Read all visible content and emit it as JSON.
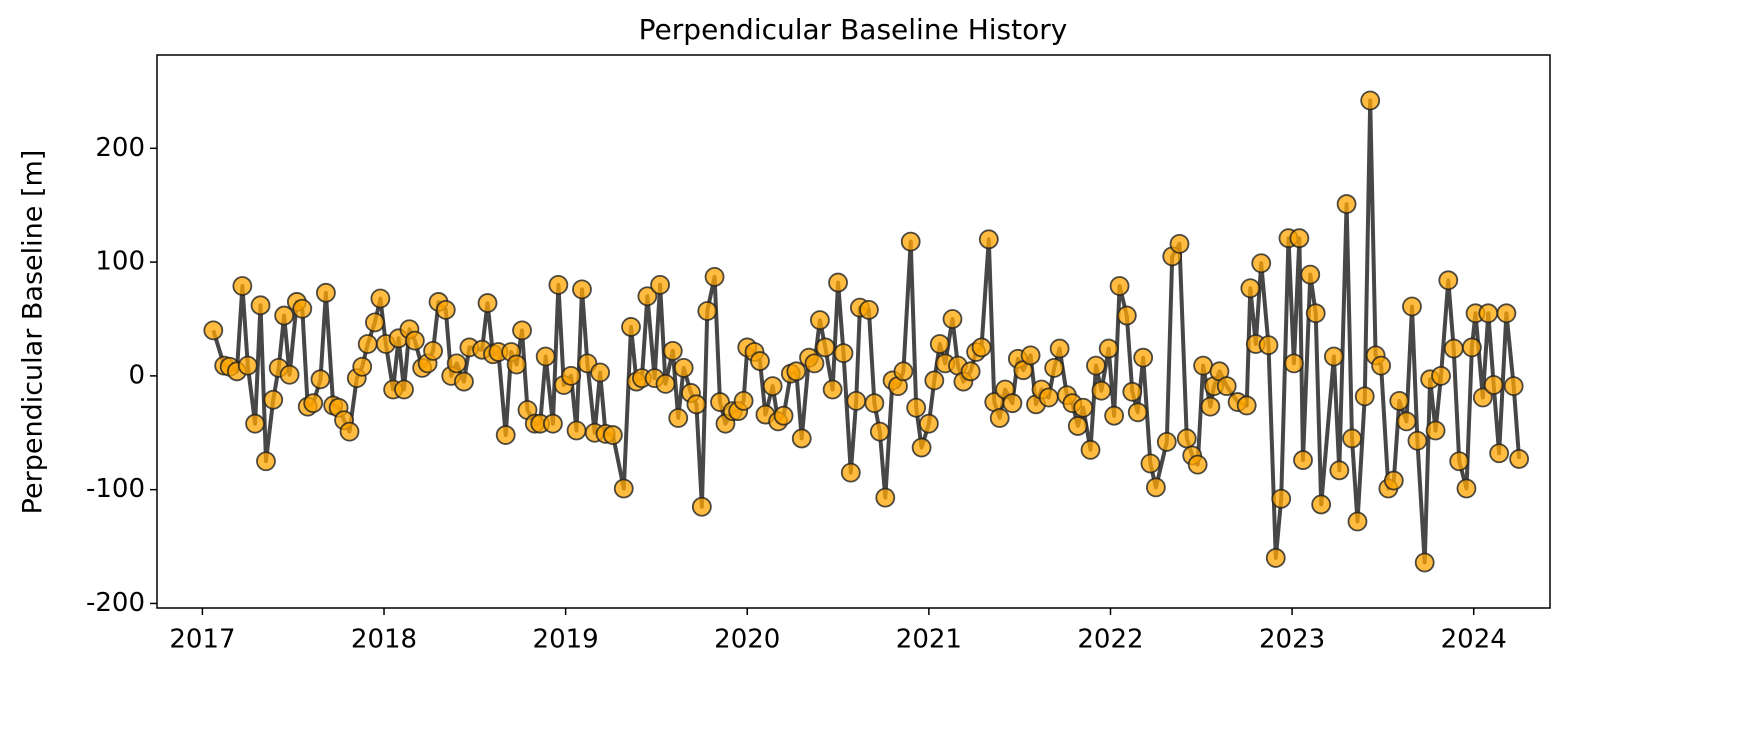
{
  "chart_data": {
    "type": "line",
    "title": "Perpendicular Baseline History",
    "y_label": "Perpendicular Baseline [m]",
    "series": [
      {
        "color": "#ffa500",
        "line_color": "#333333",
        "x": [
          2017.06,
          2017.12,
          2017.15,
          2017.19,
          2017.22,
          2017.25,
          2017.29,
          2017.32,
          2017.35,
          2017.39,
          2017.42,
          2017.45,
          2017.48,
          2017.52,
          2017.55,
          2017.58,
          2017.61,
          2017.65,
          2017.68,
          2017.72,
          2017.75,
          2017.78,
          2017.81,
          2017.85,
          2017.88,
          2017.91,
          2017.95,
          2017.98,
          2018.01,
          2018.05,
          2018.08,
          2018.11,
          2018.14,
          2018.17,
          2018.21,
          2018.24,
          2018.27,
          2018.3,
          2018.34,
          2018.37,
          2018.4,
          2018.44,
          2018.47,
          2018.54,
          2018.57,
          2018.6,
          2018.63,
          2018.67,
          2018.7,
          2018.73,
          2018.76,
          2018.79,
          2018.83,
          2018.86,
          2018.89,
          2018.93,
          2018.96,
          2018.99,
          2019.03,
          2019.06,
          2019.09,
          2019.12,
          2019.16,
          2019.19,
          2019.22,
          2019.26,
          2019.32,
          2019.36,
          2019.39,
          2019.42,
          2019.45,
          2019.49,
          2019.52,
          2019.55,
          2019.59,
          2019.62,
          2019.65,
          2019.69,
          2019.72,
          2019.75,
          2019.78,
          2019.82,
          2019.85,
          2019.88,
          2019.92,
          2019.95,
          2019.98,
          2020.0,
          2020.04,
          2020.07,
          2020.1,
          2020.14,
          2020.17,
          2020.2,
          2020.24,
          2020.27,
          2020.3,
          2020.34,
          2020.37,
          2020.4,
          2020.43,
          2020.47,
          2020.5,
          2020.53,
          2020.57,
          2020.6,
          2020.62,
          2020.67,
          2020.7,
          2020.73,
          2020.76,
          2020.8,
          2020.83,
          2020.86,
          2020.9,
          2020.93,
          2020.96,
          2021.0,
          2021.03,
          2021.06,
          2021.09,
          2021.13,
          2021.16,
          2021.19,
          2021.23,
          2021.26,
          2021.29,
          2021.33,
          2021.36,
          2021.39,
          2021.42,
          2021.46,
          2021.49,
          2021.52,
          2021.56,
          2021.59,
          2021.62,
          2021.66,
          2021.69,
          2021.72,
          2021.76,
          2021.79,
          2021.82,
          2021.85,
          2021.89,
          2021.92,
          2021.95,
          2021.99,
          2022.02,
          2022.05,
          2022.09,
          2022.12,
          2022.15,
          2022.18,
          2022.22,
          2022.25,
          2022.31,
          2022.34,
          2022.38,
          2022.42,
          2022.45,
          2022.48,
          2022.51,
          2022.55,
          2022.57,
          2022.6,
          2022.64,
          2022.7,
          2022.75,
          2022.77,
          2022.8,
          2022.83,
          2022.87,
          2022.91,
          2022.94,
          2022.98,
          2023.01,
          2023.04,
          2023.06,
          2023.1,
          2023.13,
          2023.16,
          2023.23,
          2023.26,
          2023.3,
          2023.33,
          2023.36,
          2023.4,
          2023.43,
          2023.46,
          2023.49,
          2023.53,
          2023.56,
          2023.59,
          2023.63,
          2023.66,
          2023.69,
          2023.73,
          2023.76,
          2023.79,
          2023.82,
          2023.86,
          2023.89,
          2023.92,
          2023.96,
          2023.99,
          2024.01,
          2024.05,
          2024.08,
          2024.11,
          2024.14,
          2024.18,
          2024.22,
          2024.25
        ],
        "values": [
          40,
          9,
          8,
          4,
          79,
          9,
          -42,
          62,
          -75,
          -21,
          7,
          53,
          1,
          65,
          59,
          -27,
          -24,
          -3,
          73,
          -26,
          -28,
          -39,
          -49,
          -2,
          8,
          28,
          47,
          68,
          28,
          -12,
          33,
          -12,
          41,
          31,
          7,
          11,
          22,
          65,
          58,
          0,
          11,
          -5,
          25,
          23,
          64,
          19,
          21,
          -52,
          21,
          10,
          40,
          -30,
          -42,
          -42,
          17,
          -42,
          80,
          -8,
          0,
          -48,
          76,
          11,
          -50,
          3,
          -51,
          -52,
          -99,
          43,
          -5,
          -2,
          70,
          -2,
          80,
          -7,
          22,
          -37,
          7,
          -15,
          -25,
          -115,
          57,
          87,
          -23,
          -42,
          -31,
          -31,
          -22,
          25,
          21,
          13,
          -34,
          -9,
          -40,
          -35,
          2,
          4,
          -55,
          16,
          11,
          49,
          25,
          -12,
          82,
          20,
          -85,
          -22,
          60,
          58,
          -24,
          -49,
          -107,
          -4,
          -9,
          4,
          118,
          -28,
          -63,
          -42,
          -4,
          28,
          11,
          50,
          9,
          -5,
          4,
          21,
          25,
          120,
          -23,
          -37,
          -12,
          -24,
          15,
          5,
          18,
          -25,
          -12,
          -19,
          7,
          24,
          -17,
          -24,
          -44,
          -28,
          -65,
          9,
          -13,
          24,
          -35,
          79,
          53,
          -14,
          -32,
          16,
          -77,
          -98,
          -58,
          105,
          116,
          -55,
          -70,
          -78,
          9,
          -27,
          -9,
          4,
          -9,
          -23,
          -26,
          77,
          28,
          99,
          27,
          -160,
          -108,
          121,
          11,
          121,
          -74,
          89,
          55,
          -113,
          17,
          -83,
          151,
          -55,
          -128,
          -18,
          242,
          18,
          9,
          -99,
          -92,
          -22,
          -40,
          61,
          -57,
          -164,
          -3,
          -48,
          0,
          84,
          24,
          -75,
          -99,
          25,
          55,
          -19,
          55,
          -8,
          -68,
          55,
          -9,
          -73
        ]
      }
    ],
    "xlim": [
      2016.75,
      2024.42
    ],
    "xticks": [
      2017,
      2018,
      2019,
      2020,
      2021,
      2022,
      2023,
      2024
    ],
    "ylim": [
      -204,
      282
    ],
    "yticks": [
      -200,
      -100,
      0,
      100,
      200
    ]
  }
}
